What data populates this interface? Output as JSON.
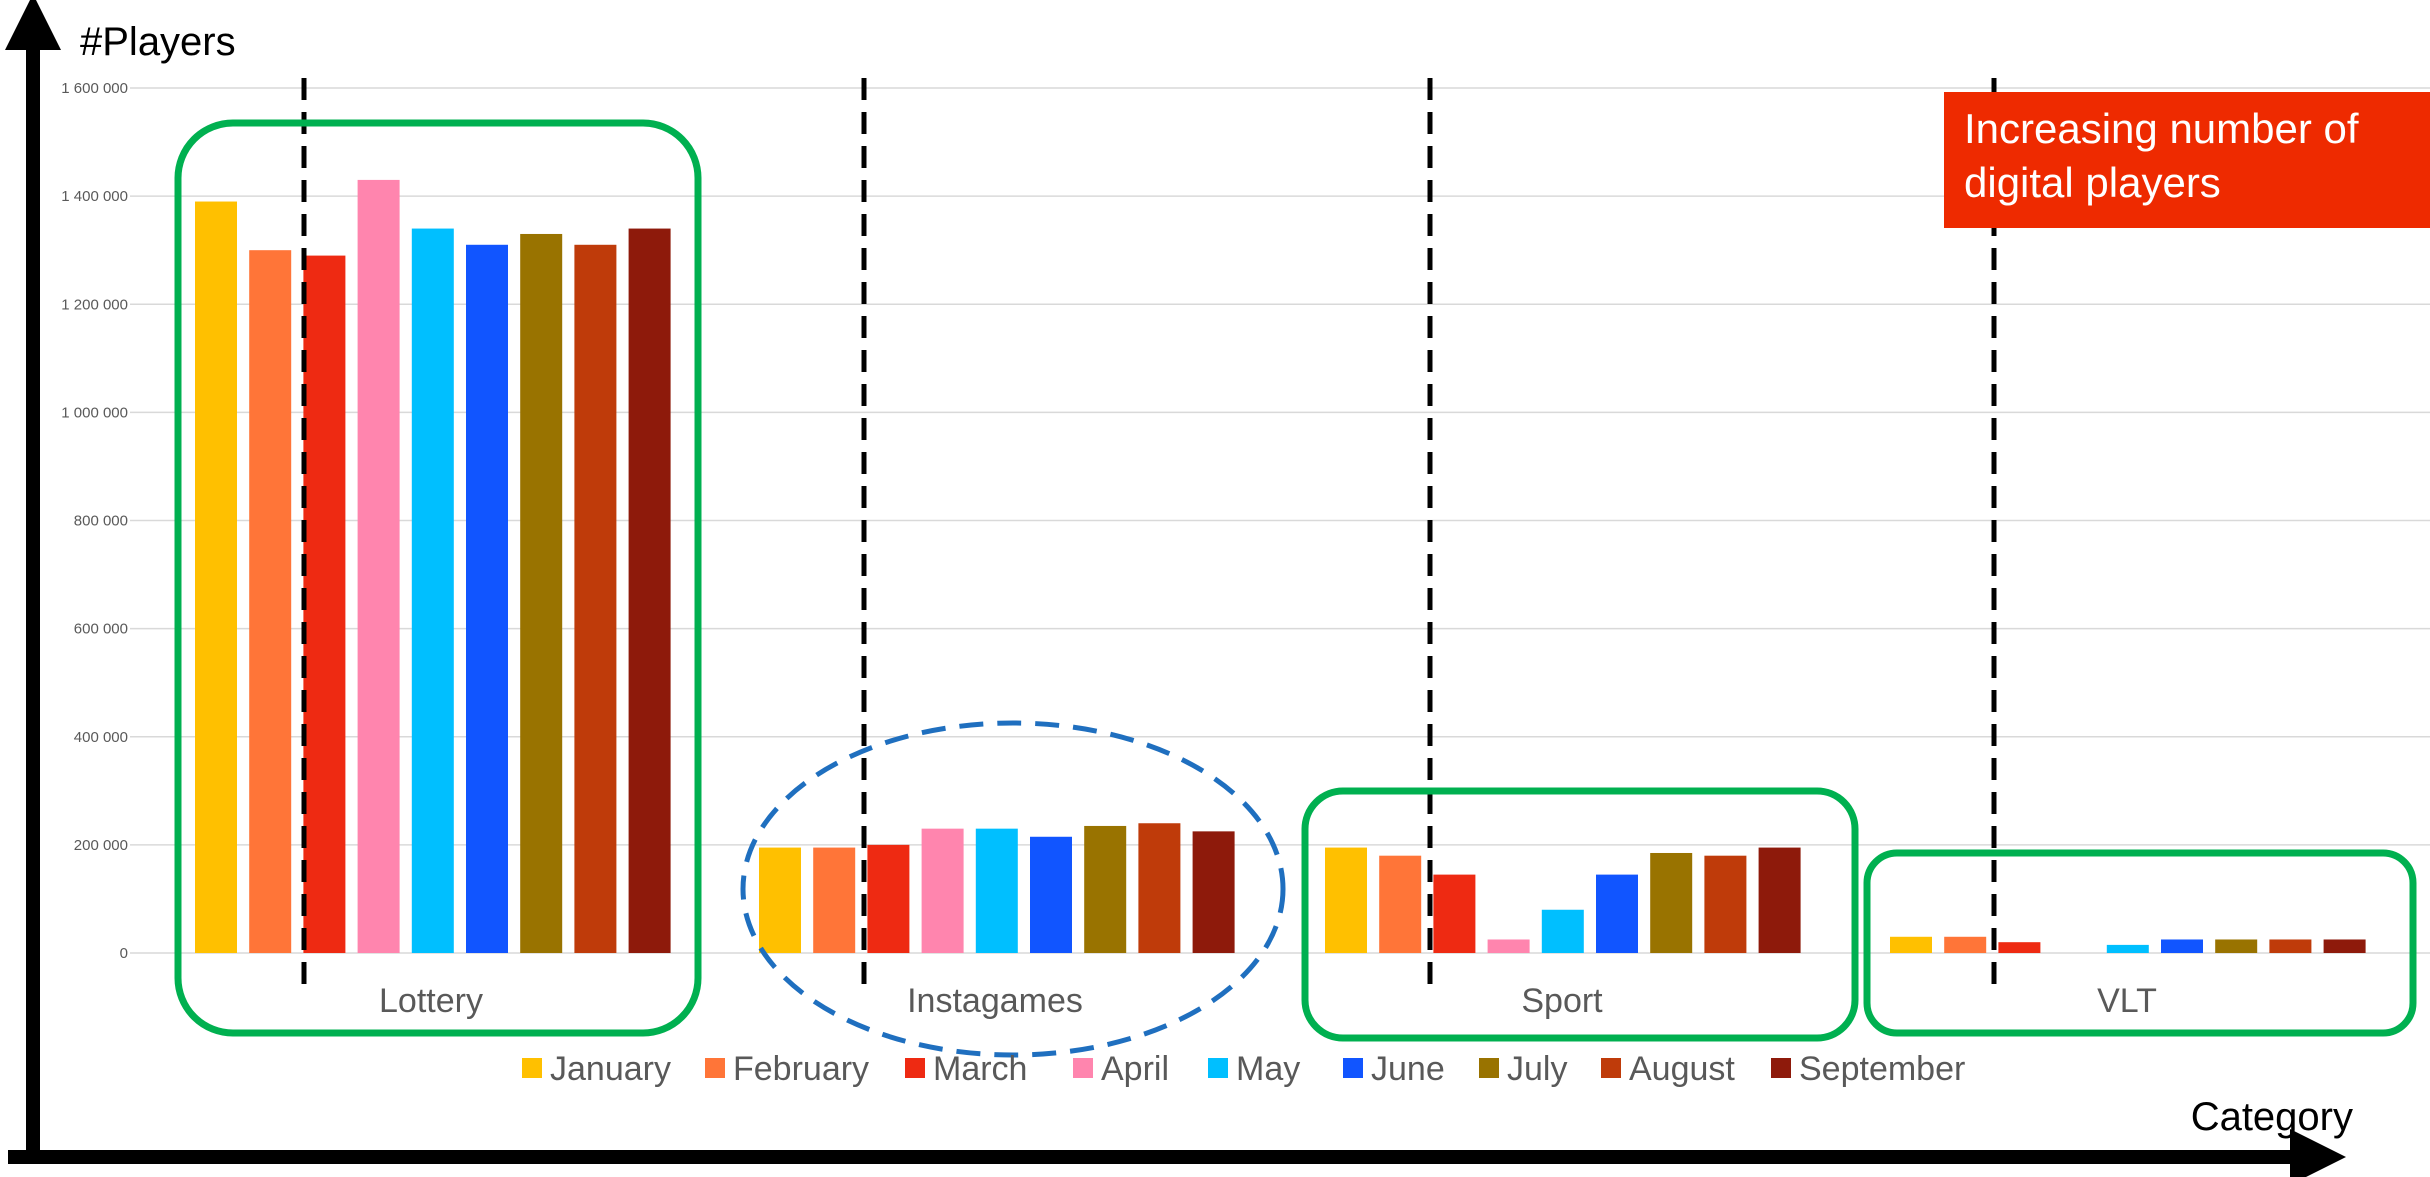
{
  "colors": {
    "months": [
      "#FFC000",
      "#FF7538",
      "#EE2A12",
      "#FF85AE",
      "#00BFFF",
      "#1155FF",
      "#997300",
      "#BF3B0A",
      "#8E1A0B"
    ],
    "highlight_box": "#00B050",
    "dashed_ellipse": "#1F6FBF",
    "callout_bg": "#EE2A00",
    "gridline": "#D9D9D9",
    "axis": "#000000"
  },
  "annotation": {
    "callout_text": "Increasing number of digital players"
  },
  "chart_data": {
    "type": "bar",
    "ylabel": "#Players",
    "xlabel": "Category",
    "ylim": [
      0,
      1600000
    ],
    "y_ticks": [
      0,
      200000,
      400000,
      600000,
      800000,
      1000000,
      1200000,
      1400000,
      1600000
    ],
    "y_tick_labels": [
      "0",
      "200 000",
      "400 000",
      "600 000",
      "800 000",
      "1 000 000",
      "1 200 000",
      "1 400 000",
      "1 600 000"
    ],
    "grid": true,
    "legend_position": "bottom",
    "categories": [
      "Lottery",
      "Instagames",
      "Sport",
      "VLT"
    ],
    "series": [
      {
        "name": "January",
        "values": [
          1390000,
          195000,
          195000,
          30000
        ]
      },
      {
        "name": "February",
        "values": [
          1300000,
          195000,
          180000,
          30000
        ]
      },
      {
        "name": "March",
        "values": [
          1290000,
          200000,
          145000,
          20000
        ]
      },
      {
        "name": "April",
        "values": [
          1430000,
          230000,
          25000,
          0
        ]
      },
      {
        "name": "May",
        "values": [
          1340000,
          230000,
          80000,
          15000
        ]
      },
      {
        "name": "June",
        "values": [
          1310000,
          215000,
          145000,
          25000
        ]
      },
      {
        "name": "July",
        "values": [
          1330000,
          235000,
          185000,
          25000
        ]
      },
      {
        "name": "August",
        "values": [
          1310000,
          240000,
          180000,
          25000
        ]
      },
      {
        "name": "September",
        "values": [
          1340000,
          225000,
          195000,
          25000
        ]
      }
    ]
  }
}
